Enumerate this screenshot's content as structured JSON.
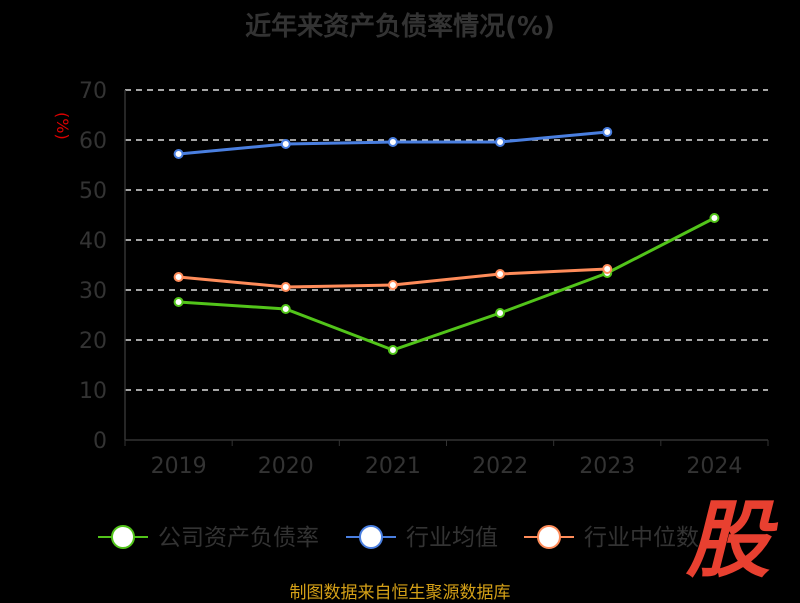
{
  "chart_data": {
    "type": "line",
    "title": "近年来资产负债率情况(%)",
    "ylabel": "(%)",
    "xlabel": "",
    "categories": [
      "2019",
      "2020",
      "2021",
      "2022",
      "2023",
      "2024"
    ],
    "ylim": [
      0,
      70
    ],
    "yticks": [
      0,
      10,
      20,
      30,
      40,
      50,
      60,
      70
    ],
    "grid": true,
    "legend_position": "bottom",
    "series": [
      {
        "name": "公司资产负债率",
        "color": "#52c41a",
        "values": [
          27.6,
          26.2,
          18.0,
          25.4,
          33.4,
          44.4
        ]
      },
      {
        "name": "行业均值",
        "color": "#4a7fe0",
        "values": [
          57.2,
          59.2,
          59.6,
          59.6,
          61.6,
          null
        ]
      },
      {
        "name": "行业中位数",
        "color": "#ff8c5a",
        "values": [
          32.6,
          30.6,
          31.0,
          33.2,
          34.2,
          null
        ]
      }
    ]
  },
  "source": "制图数据来自恒生聚源数据库",
  "logo_text": "股"
}
